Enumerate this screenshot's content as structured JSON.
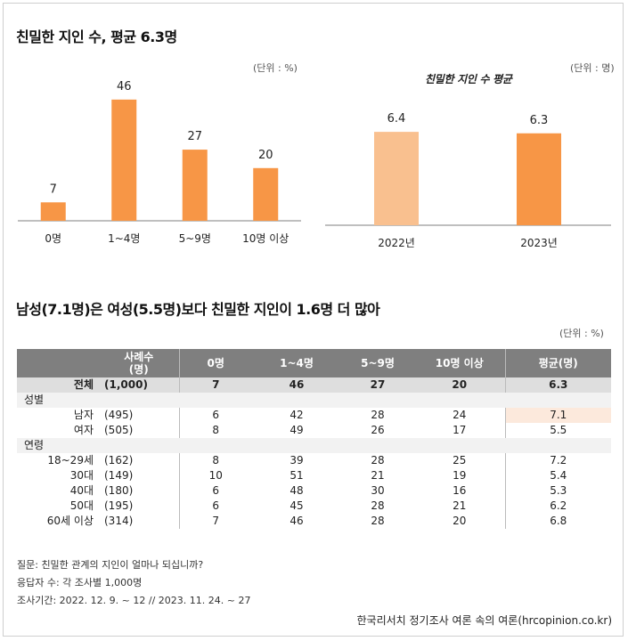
{
  "section1": {
    "title": "친밀한 지인 수, 평균 6.3명"
  },
  "section2": {
    "title": "남성(7.1명)은 여성(5.5명)보다 친밀한 지인이 1.6명 더 많아"
  },
  "chart_data": [
    {
      "type": "bar",
      "unit_label": "(단위 : %)",
      "categories": [
        "0명",
        "1~4명",
        "5~9명",
        "10명 이상"
      ],
      "values": [
        7,
        46,
        27,
        20
      ],
      "ylim": [
        0,
        50
      ],
      "color": "#f79646"
    },
    {
      "type": "bar",
      "title": "친밀한 지인 수 평균",
      "unit_label": "(단위 : 명)",
      "categories": [
        "2022년",
        "2023년"
      ],
      "values": [
        6.4,
        6.3
      ],
      "ylim": [
        0,
        7.2
      ],
      "colors": [
        "#f9c08f",
        "#f79646"
      ]
    }
  ],
  "table": {
    "unit_label": "(단위 : %)",
    "headers": [
      "사례수\n(명)",
      "0명",
      "1~4명",
      "5~9명",
      "10명 이상",
      "평균(명)"
    ],
    "total": {
      "label": "전체",
      "n": "(1,000)",
      "values": [
        "7",
        "46",
        "27",
        "20"
      ],
      "avg": "6.3"
    },
    "groups": [
      {
        "name": "성별",
        "rows": [
          {
            "label": "남자",
            "n": "(495)",
            "values": [
              "6",
              "42",
              "28",
              "24"
            ],
            "avg": "7.1",
            "highlight": true
          },
          {
            "label": "여자",
            "n": "(505)",
            "values": [
              "8",
              "49",
              "26",
              "17"
            ],
            "avg": "5.5"
          }
        ]
      },
      {
        "name": "연령",
        "rows": [
          {
            "label": "18~29세",
            "n": "(162)",
            "values": [
              "8",
              "39",
              "28",
              "25"
            ],
            "avg": "7.2"
          },
          {
            "label": "30대",
            "n": "(149)",
            "values": [
              "10",
              "51",
              "21",
              "19"
            ],
            "avg": "5.4"
          },
          {
            "label": "40대",
            "n": "(180)",
            "values": [
              "6",
              "48",
              "30",
              "16"
            ],
            "avg": "5.3"
          },
          {
            "label": "50대",
            "n": "(195)",
            "values": [
              "6",
              "45",
              "28",
              "21"
            ],
            "avg": "6.2"
          },
          {
            "label": "60세 이상",
            "n": "(314)",
            "values": [
              "7",
              "46",
              "28",
              "20"
            ],
            "avg": "6.8"
          }
        ]
      }
    ]
  },
  "footnotes": {
    "question": "질문: 친밀한 관계의 지인이 얼마나 되십니까?",
    "respondents": "응답자 수: 각 조사별 1,000명",
    "period": "조사기간: 2022. 12. 9. ~ 12 // 2023. 11. 24. ~ 27"
  },
  "source": "한국리서치 정기조사 여론 속의 여론(hrcopinion.co.kr)"
}
